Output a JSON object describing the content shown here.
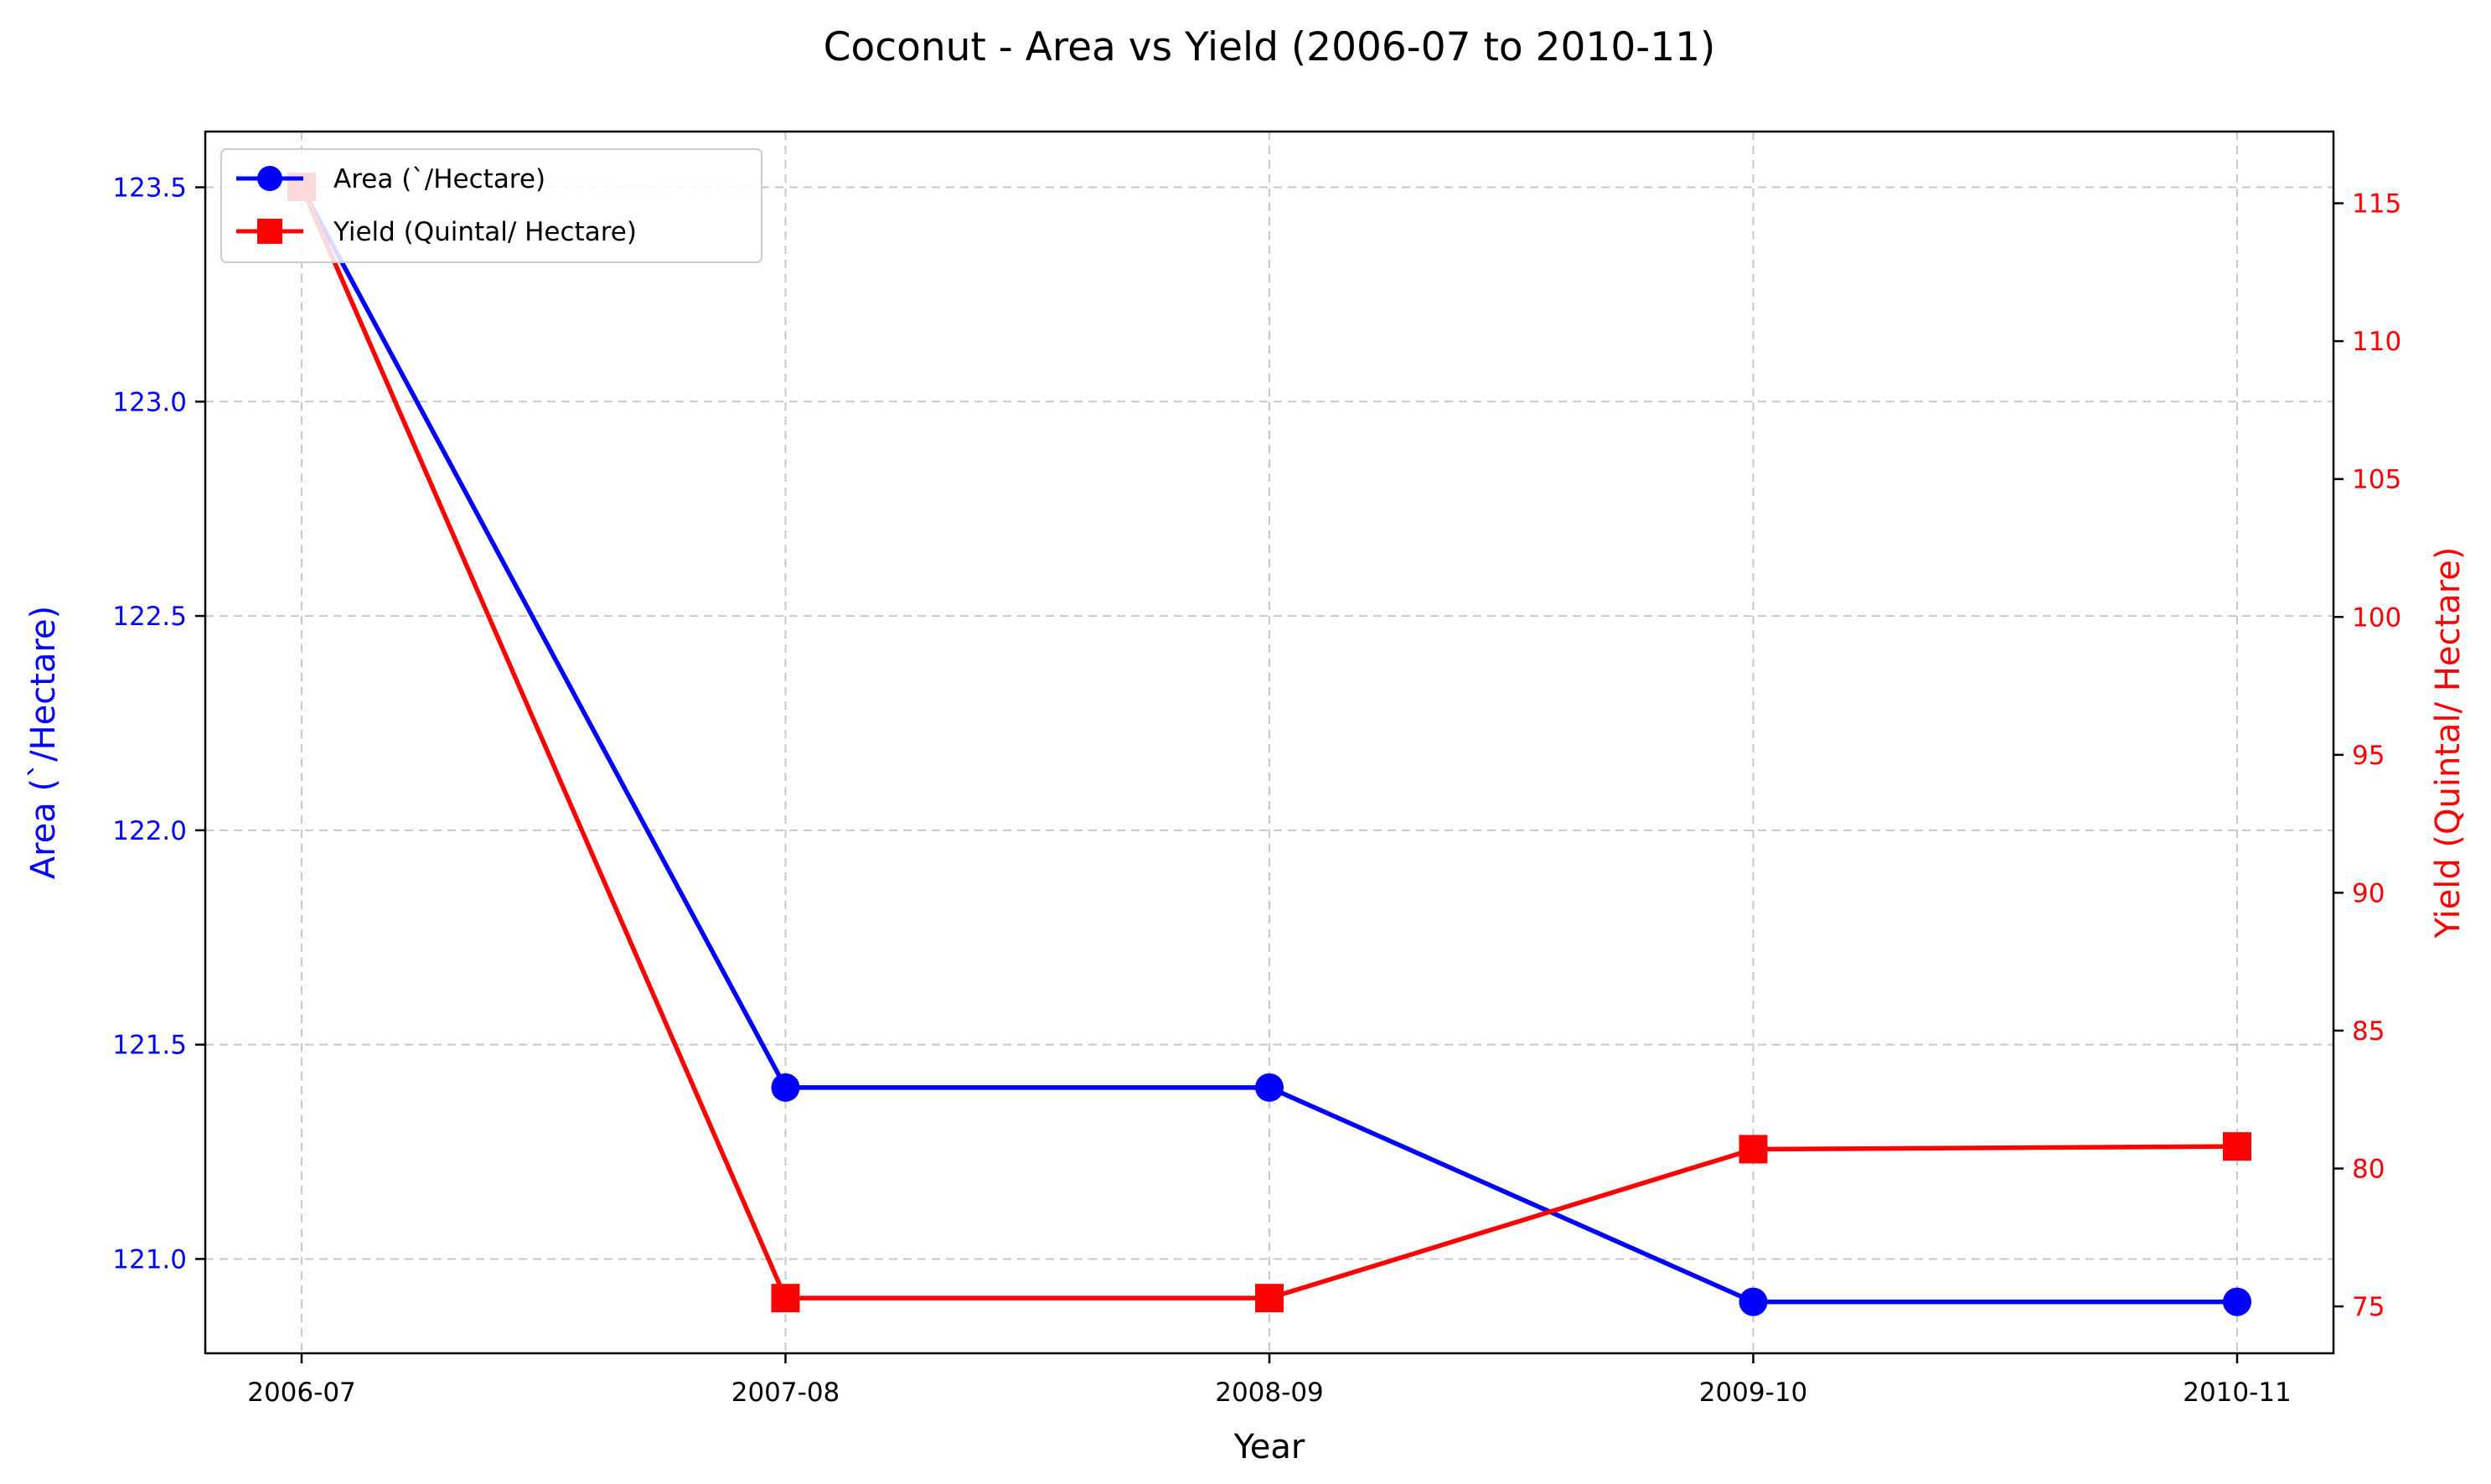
{
  "chart_data": {
    "type": "line",
    "title": "Coconut - Area vs Yield (2006-07 to 2010-11)",
    "xlabel": "Year",
    "categories": [
      "2006-07",
      "2007-08",
      "2008-09",
      "2009-10",
      "2010-11"
    ],
    "left_axis": {
      "label": "Area (`/Hectare)",
      "ylim": [
        120.78,
        123.63
      ],
      "ticks": [
        121.0,
        121.5,
        122.0,
        122.5,
        123.0,
        123.5
      ],
      "tick_labels": [
        "121.0",
        "121.5",
        "122.0",
        "122.5",
        "123.0",
        "123.5"
      ],
      "color": "#0000ff"
    },
    "right_axis": {
      "label": "Yield (Quintal/ Hectare)",
      "ylim": [
        73.3,
        117.6
      ],
      "ticks": [
        75,
        80,
        85,
        90,
        95,
        100,
        105,
        110,
        115
      ],
      "tick_labels": [
        "75",
        "80",
        "85",
        "90",
        "95",
        "100",
        "105",
        "110",
        "115"
      ],
      "color": "#ff0000"
    },
    "series": [
      {
        "name": "Area (`/Hectare)",
        "axis": "left",
        "color": "#0000ff",
        "marker": "circle",
        "values": [
          123.5,
          121.4,
          121.4,
          120.9,
          120.9
        ]
      },
      {
        "name": "Yield (Quintal/ Hectare)",
        "axis": "right",
        "color": "#ff0000",
        "marker": "square",
        "values": [
          115.6,
          75.3,
          75.3,
          80.7,
          80.8
        ]
      }
    ],
    "grid": true,
    "legend_position": "top-left"
  }
}
